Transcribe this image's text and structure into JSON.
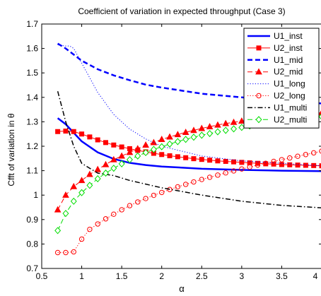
{
  "chart_data": {
    "type": "line",
    "title": "Coefficient of variation in expected throughput (Case 3)",
    "xlabel": "α",
    "ylabel": "Cfft of variation in θ",
    "xlim": [
      0.5,
      4
    ],
    "ylim": [
      0.7,
      1.7
    ],
    "xticks": [
      0.5,
      1,
      1.5,
      2,
      2.5,
      3,
      3.5,
      4
    ],
    "xtick_labels": [
      "0.5",
      "1",
      "1.5",
      "2",
      "2.5",
      "3",
      "3.5",
      "4"
    ],
    "yticks": [
      0.7,
      0.8,
      0.9,
      1.0,
      1.1,
      1.2,
      1.3,
      1.4,
      1.5,
      1.6,
      1.7
    ],
    "ytick_labels": [
      "0.7",
      "0.8",
      "0.9",
      "1",
      "1.1",
      "1.2",
      "1.3",
      "1.4",
      "1.5",
      "1.6",
      "1.7"
    ],
    "grid": false,
    "legend_position": "top-right",
    "series": [
      {
        "name": "U1_inst",
        "color": "#0000ff",
        "dash": "solid",
        "marker": "none",
        "width": 2.5,
        "x": [
          0.7,
          0.8,
          0.9,
          1.0,
          1.2,
          1.4,
          1.6,
          1.8,
          2.0,
          2.5,
          3.0,
          3.5,
          4.0
        ],
        "y": [
          1.315,
          1.29,
          1.255,
          1.22,
          1.175,
          1.148,
          1.132,
          1.123,
          1.117,
          1.108,
          1.103,
          1.1,
          1.098
        ]
      },
      {
        "name": "U2_inst",
        "color": "#ff0000",
        "dash": "solid",
        "marker": "square",
        "width": 1,
        "x": [
          0.7,
          0.8,
          0.9,
          1.0,
          1.1,
          1.2,
          1.3,
          1.4,
          1.5,
          1.6,
          1.7,
          1.8,
          1.9,
          2.0,
          2.1,
          2.2,
          2.3,
          2.4,
          2.5,
          2.6,
          2.7,
          2.8,
          2.9,
          3.0,
          3.1,
          3.2,
          3.3,
          3.4,
          3.5,
          3.6,
          3.7,
          3.8,
          3.9,
          4.0
        ],
        "y": [
          1.26,
          1.262,
          1.26,
          1.25,
          1.238,
          1.226,
          1.215,
          1.205,
          1.197,
          1.19,
          1.183,
          1.177,
          1.171,
          1.166,
          1.161,
          1.157,
          1.153,
          1.149,
          1.146,
          1.143,
          1.14,
          1.138,
          1.136,
          1.134,
          1.132,
          1.13,
          1.128,
          1.127,
          1.125,
          1.124,
          1.123,
          1.122,
          1.121,
          1.12
        ]
      },
      {
        "name": "U1_mid",
        "color": "#0000ff",
        "dash": "dashed",
        "marker": "none",
        "width": 2.5,
        "x": [
          0.7,
          0.8,
          0.9,
          1.0,
          1.2,
          1.4,
          1.6,
          1.8,
          2.0,
          2.5,
          3.0,
          3.5,
          4.0
        ],
        "y": [
          1.62,
          1.6,
          1.575,
          1.55,
          1.515,
          1.49,
          1.47,
          1.452,
          1.44,
          1.415,
          1.4,
          1.385,
          1.375
        ]
      },
      {
        "name": "U2_mid",
        "color": "#ff0000",
        "dash": "dashed",
        "marker": "triangle",
        "width": 1,
        "x": [
          0.7,
          0.8,
          0.9,
          1.0,
          1.1,
          1.2,
          1.3,
          1.4,
          1.5,
          1.6,
          1.7,
          1.8,
          1.9,
          2.0,
          2.1,
          2.2,
          2.3,
          2.4,
          2.5,
          2.6,
          2.7,
          2.8,
          2.9,
          3.0,
          3.1,
          3.2,
          3.3,
          3.4,
          3.5,
          3.6,
          3.7,
          3.8,
          3.9,
          4.0
        ],
        "y": [
          0.94,
          1.0,
          1.035,
          1.06,
          1.085,
          1.105,
          1.125,
          1.145,
          1.16,
          1.175,
          1.19,
          1.205,
          1.215,
          1.228,
          1.238,
          1.248,
          1.257,
          1.265,
          1.273,
          1.28,
          1.287,
          1.293,
          1.298,
          1.303,
          1.308,
          1.312,
          1.316,
          1.32,
          1.323,
          1.326,
          1.329,
          1.332,
          1.335,
          1.337
        ]
      },
      {
        "name": "U1_long",
        "color": "#0000ff",
        "dash": "dotted",
        "marker": "none",
        "width": 1,
        "x": [
          0.7,
          0.75,
          0.8,
          0.85,
          0.9,
          1.0,
          1.2,
          1.4,
          1.6,
          1.8,
          2.0,
          2.5,
          3.0,
          3.5,
          4.0
        ],
        "y": [
          1.615,
          1.612,
          1.61,
          1.61,
          1.6,
          1.54,
          1.42,
          1.33,
          1.27,
          1.23,
          1.2,
          1.16,
          1.14,
          1.13,
          1.12
        ]
      },
      {
        "name": "U2_long",
        "color": "#ff0000",
        "dash": "dotted",
        "marker": "circle",
        "width": 1,
        "x": [
          0.7,
          0.8,
          0.9,
          1.0,
          1.1,
          1.2,
          1.3,
          1.4,
          1.5,
          1.6,
          1.7,
          1.8,
          1.9,
          2.0,
          2.1,
          2.2,
          2.3,
          2.4,
          2.5,
          2.6,
          2.7,
          2.8,
          2.9,
          3.0,
          3.1,
          3.2,
          3.3,
          3.4,
          3.5,
          3.6,
          3.7,
          3.8,
          3.9,
          4.0
        ],
        "y": [
          0.765,
          0.765,
          0.768,
          0.82,
          0.86,
          0.882,
          0.903,
          0.922,
          0.94,
          0.957,
          0.972,
          0.986,
          0.999,
          1.011,
          1.023,
          1.034,
          1.044,
          1.054,
          1.064,
          1.073,
          1.082,
          1.091,
          1.099,
          1.107,
          1.115,
          1.123,
          1.13,
          1.138,
          1.145,
          1.152,
          1.159,
          1.166,
          1.173,
          1.18
        ]
      },
      {
        "name": "U1_multi",
        "color": "#000000",
        "dash": "dashdot",
        "marker": "none",
        "width": 1.5,
        "x": [
          0.7,
          0.8,
          0.9,
          1.0,
          1.2,
          1.4,
          1.6,
          1.8,
          2.0,
          2.5,
          3.0,
          3.5,
          4.0
        ],
        "y": [
          1.425,
          1.3,
          1.2,
          1.13,
          1.09,
          1.08,
          1.06,
          1.045,
          1.03,
          1.0,
          0.975,
          0.958,
          0.948
        ]
      },
      {
        "name": "U2_multi",
        "color": "#00dd00",
        "dash": "dashed",
        "marker": "diamond",
        "width": 1,
        "x": [
          0.7,
          0.8,
          0.9,
          1.0,
          1.1,
          1.2,
          1.3,
          1.4,
          1.5,
          1.6,
          1.7,
          1.8,
          1.9,
          2.0,
          2.1,
          2.2,
          2.3,
          2.4,
          2.5,
          2.6,
          2.7,
          2.8,
          2.9,
          3.0,
          3.1,
          3.2,
          3.3,
          3.4,
          3.5,
          3.6,
          3.7,
          3.8,
          3.9,
          4.0
        ],
        "y": [
          0.855,
          0.925,
          0.975,
          1.01,
          1.04,
          1.067,
          1.09,
          1.11,
          1.128,
          1.145,
          1.16,
          1.174,
          1.187,
          1.198,
          1.209,
          1.219,
          1.228,
          1.237,
          1.245,
          1.252,
          1.259,
          1.265,
          1.271,
          1.277,
          1.283,
          1.288,
          1.293,
          1.298,
          1.302,
          1.306,
          1.31,
          1.314,
          1.318,
          1.321
        ]
      }
    ]
  }
}
